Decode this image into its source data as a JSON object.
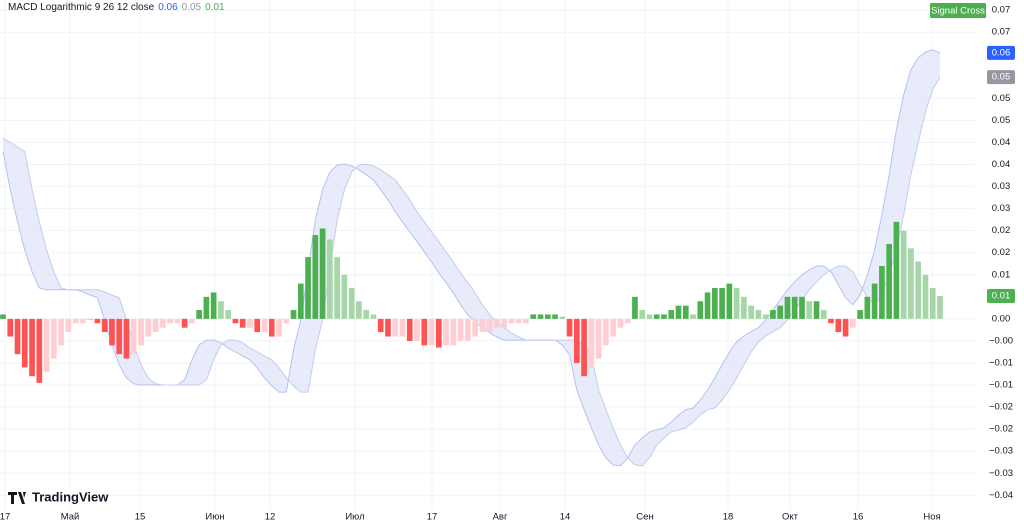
{
  "chart_data": {
    "type": "macd",
    "title": "MACD Logarithmic 9 26 12 close",
    "annotation": "Signal Cross",
    "annotation_color": "#4caf50",
    "watermark": "TradingView",
    "ylim": [
      -0.0456,
      0.0723
    ],
    "yticks": [
      0.07,
      {
        "value": 0.065,
        "label": "0.07"
      },
      0.05,
      {
        "value": 0.045,
        "label": "0.05"
      },
      0.04,
      {
        "value": 0.035,
        "label": "0.04"
      },
      0.03,
      {
        "value": 0.025,
        "label": "0.03"
      },
      0.02,
      {
        "value": 0.015,
        "label": "0.02"
      },
      0.01,
      {
        "value": 0,
        "label": "0.00"
      },
      {
        "value": -0.005,
        "label": "−0.00"
      },
      {
        "value": -0.01,
        "label": "−0.01"
      },
      {
        "value": -0.015,
        "label": "−0.01"
      },
      {
        "value": -0.02,
        "label": "−0.02"
      },
      {
        "value": -0.025,
        "label": "−0.02"
      },
      {
        "value": -0.03,
        "label": "−0.03"
      },
      {
        "value": -0.035,
        "label": "−0.03"
      },
      {
        "value": -0.04,
        "label": "−0.04"
      }
    ],
    "grid": true,
    "x_labels": [
      "17",
      "Май",
      "15",
      "Июн",
      "12",
      "Июл",
      "17",
      "Авг",
      "14",
      "Сен",
      "18",
      "Окт",
      "16",
      "Ноя"
    ],
    "band_fill": "#dde3f8",
    "series": [
      {
        "type": "line",
        "color": "#b6c2ee",
        "values": [
          0.0379,
          0.0293,
          0.022,
          0.0156,
          0.0107,
          0.007,
          0.0066,
          0.0066,
          0.0066,
          0.0066,
          0.0066,
          0.0061,
          0.0054,
          0.0048,
          -0.0002,
          -0.0059,
          -0.0104,
          -0.0134,
          -0.0147,
          -0.015,
          -0.015,
          -0.015,
          -0.015,
          -0.015,
          -0.015,
          -0.0138,
          -0.0093,
          -0.0059,
          -0.0048,
          -0.0048,
          -0.0054,
          -0.0066,
          -0.0075,
          -0.0084,
          -0.0093,
          -0.0111,
          -0.0134,
          -0.0152,
          -0.0166,
          -0.0166,
          -0.007,
          -0.0002,
          0.0111,
          0.0224,
          0.0293,
          0.0333,
          0.0349,
          0.0351,
          0.0347,
          0.0338,
          0.0327,
          0.0315,
          0.0293,
          0.027,
          0.0243,
          0.022,
          0.0197,
          0.0175,
          0.0152,
          0.0129,
          0.0104,
          0.0082,
          0.0059,
          0.0032,
          0.0009,
          -0.0007,
          -0.002,
          -0.0032,
          -0.0041,
          -0.0048,
          -0.0048,
          -0.0048,
          -0.0048,
          -0.0048,
          -0.0048,
          -0.0048,
          -0.0048,
          -0.0059,
          -0.0082,
          -0.0161,
          -0.0206,
          -0.0247,
          -0.0286,
          -0.0315,
          -0.0331,
          -0.0333,
          -0.0315,
          -0.0286,
          -0.027,
          -0.0256,
          -0.0252,
          -0.0247,
          -0.0234,
          -0.0218,
          -0.0206,
          -0.0202,
          -0.0184,
          -0.0161,
          -0.0134,
          -0.0104,
          -0.0075,
          -0.0052,
          -0.0039,
          -0.0029,
          -0.002,
          -0.0002,
          0.002,
          0.0043,
          0.0066,
          0.0084,
          0.01,
          0.0111,
          0.012,
          0.012,
          0.0107,
          0.0077,
          0.0048,
          0.0032,
          0.0054,
          0.01,
          0.0156,
          0.0236,
          0.0327,
          0.0429,
          0.0508,
          0.0565,
          0.0592,
          0.0605,
          0.061,
          0.0603
        ]
      },
      {
        "type": "line",
        "color": "#c3ccf0",
        "values": [
          0.041,
          0.04,
          0.039,
          0.0379,
          0.0293,
          0.022,
          0.0156,
          0.0107,
          0.007,
          0.0066,
          0.0066,
          0.0066,
          0.0066,
          0.0066,
          0.0061,
          0.0054,
          0.0048,
          -0.0002,
          -0.0059,
          -0.0104,
          -0.0134,
          -0.0147,
          -0.015,
          -0.015,
          -0.015,
          -0.015,
          -0.015,
          -0.015,
          -0.0138,
          -0.0093,
          -0.0059,
          -0.0048,
          -0.0048,
          -0.0054,
          -0.0066,
          -0.0075,
          -0.0084,
          -0.0093,
          -0.0111,
          -0.0134,
          -0.0152,
          -0.0166,
          -0.0166,
          -0.007,
          -0.0002,
          0.0111,
          0.0224,
          0.0293,
          0.0333,
          0.0349,
          0.0351,
          0.0347,
          0.0338,
          0.0327,
          0.0315,
          0.0293,
          0.027,
          0.0243,
          0.022,
          0.0197,
          0.0175,
          0.0152,
          0.0129,
          0.0104,
          0.0082,
          0.0059,
          0.0032,
          0.0009,
          -0.0007,
          -0.002,
          -0.0032,
          -0.0041,
          -0.0048,
          -0.0048,
          -0.0048,
          -0.0048,
          -0.0048,
          -0.0048,
          -0.0048,
          -0.0048,
          -0.0059,
          -0.0082,
          -0.0161,
          -0.0206,
          -0.0247,
          -0.0286,
          -0.0315,
          -0.0331,
          -0.0333,
          -0.0315,
          -0.0286,
          -0.027,
          -0.0256,
          -0.0252,
          -0.0247,
          -0.0234,
          -0.0218,
          -0.0206,
          -0.0202,
          -0.0184,
          -0.0161,
          -0.0134,
          -0.0104,
          -0.0075,
          -0.0052,
          -0.0039,
          -0.0029,
          -0.002,
          -0.0002,
          0.002,
          0.0043,
          0.0066,
          0.0084,
          0.01,
          0.0111,
          0.012,
          0.012,
          0.0107,
          0.0077,
          0.0048,
          0.0032,
          0.0054,
          0.01,
          0.0156,
          0.0236,
          0.0327,
          0.04,
          0.047,
          0.052,
          0.0548
        ]
      },
      {
        "type": "bar",
        "colors": {
          "positive_rising": "#4caf50",
          "positive_falling": "#a5d6a7",
          "negative_falling": "#ff5252",
          "negative_rising": "#ffcdd2"
        },
        "values": [
          0.001,
          -0.004,
          -0.008,
          -0.011,
          -0.013,
          -0.0145,
          -0.012,
          -0.009,
          -0.006,
          -0.003,
          -0.001,
          -0.001,
          0,
          -0.001,
          -0.003,
          -0.006,
          -0.008,
          -0.009,
          -0.008,
          -0.006,
          -0.004,
          -0.003,
          -0.002,
          -0.001,
          -0.001,
          -0.002,
          -0.001,
          0.002,
          0.005,
          0.006,
          0.004,
          0.002,
          -0.001,
          -0.002,
          -0.002,
          -0.003,
          -0.003,
          -0.004,
          -0.004,
          -0.001,
          0.002,
          0.008,
          0.014,
          0.019,
          0.0205,
          0.018,
          0.014,
          0.01,
          0.007,
          0.004,
          0.002,
          0.001,
          -0.003,
          -0.004,
          -0.004,
          -0.004,
          -0.005,
          -0.005,
          -0.006,
          -0.006,
          -0.0065,
          -0.006,
          -0.006,
          -0.005,
          -0.005,
          -0.004,
          -0.003,
          -0.003,
          -0.002,
          -0.002,
          -0.001,
          -0.001,
          -0.001,
          0.001,
          0.001,
          0.001,
          0.001,
          0.0005,
          -0.004,
          -0.01,
          -0.013,
          -0.011,
          -0.009,
          -0.006,
          -0.004,
          -0.002,
          -0.001,
          0.005,
          0.002,
          0.001,
          0.001,
          0.001,
          0.002,
          0.003,
          0.003,
          0.001,
          0.004,
          0.006,
          0.007,
          0.007,
          0.008,
          0.007,
          0.005,
          0.003,
          0.002,
          0.001,
          0.002,
          0.003,
          0.005,
          0.005,
          0.005,
          0.004,
          0.004,
          0.002,
          -0.001,
          -0.003,
          -0.004,
          -0.002,
          0.002,
          0.005,
          0.008,
          0.012,
          0.017,
          0.022,
          0.02,
          0.016,
          0.013,
          0.01,
          0.007,
          0.0052
        ]
      }
    ],
    "last_values": [
      {
        "value": 0.0603,
        "label": "0.06",
        "color": "#2962ff"
      },
      {
        "value": 0.0548,
        "label": "0.05",
        "color": "#9598a1"
      },
      {
        "value": 0.0052,
        "label": "0.01",
        "color": "#4caf50"
      }
    ]
  }
}
